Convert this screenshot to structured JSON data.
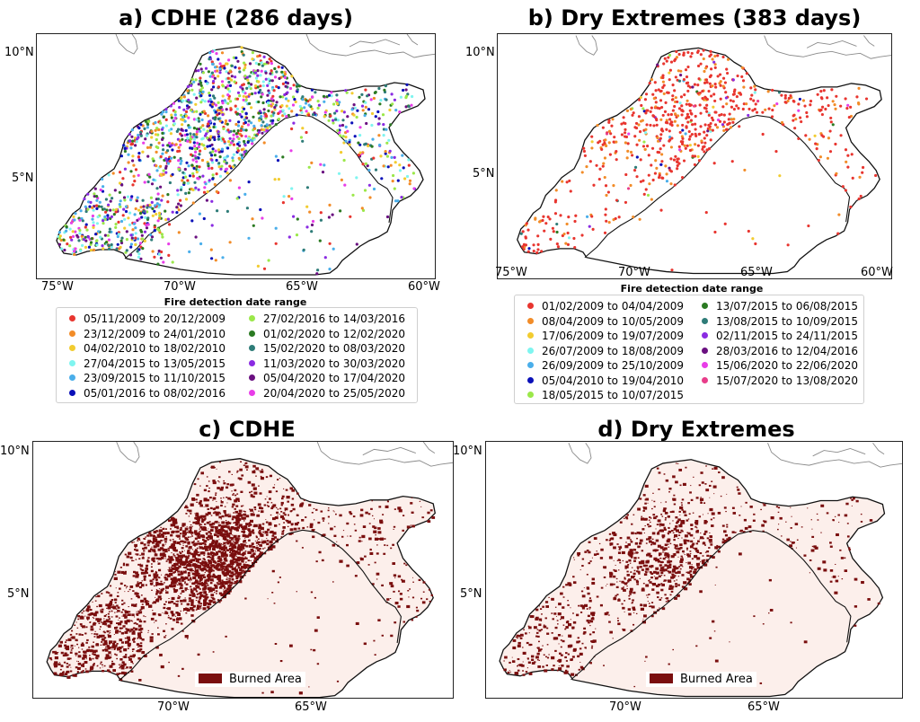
{
  "panels": {
    "a": {
      "title": "a) CDHE (286 days)",
      "y_ticks": [
        "10°N",
        "5°N"
      ],
      "x_ticks": [
        "75°W",
        "70°W",
        "65°W",
        "60°W"
      ],
      "legend_title": "Fire detection date range",
      "legend": [
        {
          "label": "05/11/2009 to 20/12/2009",
          "color": "#e8352f"
        },
        {
          "label": "23/12/2009 to 24/01/2010",
          "color": "#f28c28"
        },
        {
          "label": "04/02/2010 to 18/02/2010",
          "color": "#f2cc30"
        },
        {
          "label": "27/04/2015 to 13/05/2015",
          "color": "#7ff5f0"
        },
        {
          "label": "23/09/2015 to 11/10/2015",
          "color": "#4aaeea"
        },
        {
          "label": "05/01/2016 to 08/02/2016",
          "color": "#0a10b8"
        },
        {
          "label": "27/02/2016 to 14/03/2016",
          "color": "#9be84a"
        },
        {
          "label": "01/02/2020 to 12/02/2020",
          "color": "#2b7a22"
        },
        {
          "label": "15/02/2020 to 08/03/2020",
          "color": "#2e7c78"
        },
        {
          "label": "11/03/2020 to 30/03/2020",
          "color": "#8a2be2"
        },
        {
          "label": "05/04/2020 to 17/04/2020",
          "color": "#6a1080"
        },
        {
          "label": "20/04/2020 to 25/05/2020",
          "color": "#e83de8"
        }
      ]
    },
    "b": {
      "title": "b) Dry Extremes (383 days)",
      "y_ticks": [
        "10°N",
        "5°N"
      ],
      "x_ticks": [
        "75°W",
        "70°W",
        "65°W",
        "60°W"
      ],
      "legend_title": "Fire detection date range",
      "legend": [
        {
          "label": "01/02/2009 to 04/04/2009",
          "color": "#e8352f"
        },
        {
          "label": "08/04/2009 to 10/05/2009",
          "color": "#f28c28"
        },
        {
          "label": "17/06/2009 to 19/07/2009",
          "color": "#f2cc30"
        },
        {
          "label": "26/07/2009 to 18/08/2009",
          "color": "#7ff5f0"
        },
        {
          "label": "26/09/2009 to 25/10/2009",
          "color": "#4aaeea"
        },
        {
          "label": "05/04/2010 to 19/04/2010",
          "color": "#0a10b8"
        },
        {
          "label": "18/05/2015 to 10/07/2015",
          "color": "#9be84a"
        },
        {
          "label": "13/07/2015 to 06/08/2015",
          "color": "#2b7a22"
        },
        {
          "label": "13/08/2015 to 10/09/2015",
          "color": "#2e7c78"
        },
        {
          "label": "02/11/2015 to 24/11/2015",
          "color": "#8a2be2"
        },
        {
          "label": "28/03/2016 to 12/04/2016",
          "color": "#6a1080"
        },
        {
          "label": "15/06/2020 to 22/06/2020",
          "color": "#e83de8"
        },
        {
          "label": "15/07/2020 to 13/08/2020",
          "color": "#e83d8a"
        }
      ]
    },
    "c": {
      "title": "c) CDHE",
      "y_ticks": [
        "10°N",
        "5°N"
      ],
      "x_ticks": [
        "70°W",
        "65°W"
      ],
      "burned_label": "Burned Area"
    },
    "d": {
      "title": "d) Dry Extremes",
      "y_ticks": [
        "10°N",
        "5°N"
      ],
      "x_ticks": [
        "70°W",
        "65°W"
      ],
      "burned_label": "Burned Area"
    }
  },
  "colors": {
    "burned": "#7a0e0e",
    "region_fill_burn_maps": "#fcefeb",
    "border": "#111111"
  }
}
